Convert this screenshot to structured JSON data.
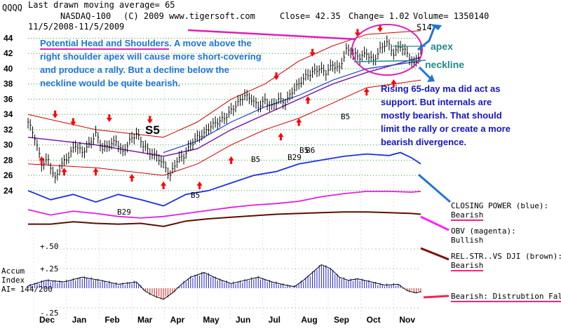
{
  "header": {
    "ticker": "QQQQ",
    "ma_label": "Last drawn moving average= 65",
    "index": "NASDAQ-100",
    "copyright": "(C) 2009 www.tigersoft.com",
    "close": "Close=  42.35",
    "change": "Change= 1.02",
    "volume": "Volume= 1350140",
    "date_range": "11/5/2008-11/5/2009"
  },
  "annotations": {
    "head_shoulders_title": "Potential Head and Shoulders",
    "head_shoulders_line1": ".  A move above the",
    "head_shoulders_line2": "right shoulder apex will cause more short-covering",
    "head_shoulders_line3": "and produce a rally.  But a decline below the",
    "head_shoulders_line4": "neckline would be quite bearish.",
    "support_line1": "Rising 65-day ma did act as",
    "support_line2": "support.  But internals are",
    "support_line3": "mostly bearish.  That should",
    "support_line4": "limit the rally or create a more",
    "support_line5": "bearish divergence.",
    "apex": "apex",
    "neckline": "neckline"
  },
  "indicators": {
    "closing_power_name": "CLOSING POWER (blue):",
    "closing_power_status": "Bearish",
    "obv_name": "OBV (magenta):",
    "obv_status": "Bullish",
    "relstr_name": "REL.STR..VS DJI (brown):",
    "relstr_status": "Bearish",
    "accum_status": "Bearish: Distrubtion Falling."
  },
  "accum": {
    "title1": "Accum",
    "title2": "Index",
    "ai": "AI= 144/200",
    "level_p50": "+.50",
    "level_p25": "+.25",
    "level_m25": "-.25"
  },
  "signals": {
    "s5": "S5",
    "s14": "S14",
    "b5": "B5",
    "b29": "B29",
    "b6": "B6"
  },
  "colors": {
    "price": "#000000",
    "band": "#cc0000",
    "ma65": "#7a1fa0",
    "ma_blue": "#1f3fd0",
    "closing_power": "#1a2fe0",
    "obv": "#e020e0",
    "relstr": "#5a0f00",
    "accum_pos": "#2020d0",
    "accum_neg": "#d02020",
    "annot_blue": "#1f74d6",
    "annot_navy": "#1515c8",
    "grid": "#2aa02a"
  },
  "chart_data": {
    "type": "line",
    "title": "NASDAQ-100 QQQQ 11/5/2008-11/5/2009",
    "x_label": "",
    "y_label": "",
    "months": [
      "Dec",
      "Jan",
      "Feb",
      "Mar",
      "Apr",
      "May",
      "Jun",
      "Jul",
      "Aug",
      "Sep",
      "Oct",
      "Nov"
    ],
    "y_ticks": [
      24,
      26,
      28,
      30,
      32,
      34,
      36,
      38,
      40,
      42,
      44
    ],
    "ylim": [
      22.6,
      44.6
    ],
    "price_points": [
      [
        0,
        33
      ],
      [
        3,
        31
      ],
      [
        6,
        27.5
      ],
      [
        9,
        28
      ],
      [
        12,
        25.5
      ],
      [
        15,
        27.5
      ],
      [
        18,
        28.5
      ],
      [
        21,
        30
      ],
      [
        24,
        29
      ],
      [
        27,
        30
      ],
      [
        30,
        31.5
      ],
      [
        33,
        29.5
      ],
      [
        36,
        30
      ],
      [
        39,
        30.5
      ],
      [
        42,
        29
      ],
      [
        45,
        30.5
      ],
      [
        48,
        31.5
      ],
      [
        51,
        30
      ],
      [
        54,
        29
      ],
      [
        57,
        28.5
      ],
      [
        60,
        27.5
      ],
      [
        63,
        26
      ],
      [
        66,
        28
      ],
      [
        69,
        28.5
      ],
      [
        72,
        30
      ],
      [
        75,
        31
      ],
      [
        78,
        31.5
      ],
      [
        81,
        32.5
      ],
      [
        84,
        33
      ],
      [
        87,
        33.5
      ],
      [
        90,
        34.5
      ],
      [
        93,
        35.5
      ],
      [
        96,
        36.5
      ],
      [
        99,
        36
      ],
      [
        102,
        35
      ],
      [
        105,
        35.8
      ],
      [
        108,
        35
      ],
      [
        111,
        36
      ],
      [
        114,
        35.5
      ],
      [
        117,
        37
      ],
      [
        120,
        38
      ],
      [
        123,
        39
      ],
      [
        126,
        39.5
      ],
      [
        129,
        40
      ],
      [
        132,
        39.5
      ],
      [
        135,
        40.5
      ],
      [
        138,
        40
      ],
      [
        141,
        42.5
      ],
      [
        144,
        42
      ],
      [
        147,
        41.5
      ],
      [
        150,
        42
      ],
      [
        153,
        41
      ],
      [
        156,
        42.5
      ],
      [
        159,
        43.5
      ],
      [
        162,
        42
      ],
      [
        165,
        43
      ],
      [
        168,
        42
      ],
      [
        171,
        40.5
      ],
      [
        174,
        42.35
      ]
    ],
    "ma65_points": [
      [
        0,
        31
      ],
      [
        30,
        30
      ],
      [
        60,
        28.5
      ],
      [
        75,
        29.5
      ],
      [
        90,
        32
      ],
      [
        105,
        34
      ],
      [
        120,
        36
      ],
      [
        135,
        38
      ],
      [
        150,
        39.5
      ],
      [
        174,
        41.5
      ]
    ],
    "ma_blue_points": [
      [
        60,
        29
      ],
      [
        75,
        30.5
      ],
      [
        90,
        33
      ],
      [
        105,
        35
      ],
      [
        120,
        36.5
      ],
      [
        135,
        38.5
      ],
      [
        150,
        40
      ],
      [
        174,
        41
      ]
    ],
    "upper_band_points": [
      [
        0,
        34
      ],
      [
        30,
        32
      ],
      [
        60,
        31
      ],
      [
        75,
        33
      ],
      [
        90,
        36
      ],
      [
        105,
        38
      ],
      [
        120,
        41
      ],
      [
        135,
        43
      ],
      [
        150,
        44.5
      ],
      [
        174,
        45
      ]
    ],
    "lower_band_points": [
      [
        0,
        27.5
      ],
      [
        30,
        27
      ],
      [
        60,
        26
      ],
      [
        75,
        27.5
      ],
      [
        90,
        30
      ],
      [
        105,
        32
      ],
      [
        120,
        33.5
      ],
      [
        135,
        35.5
      ],
      [
        150,
        37.5
      ],
      [
        174,
        38.5
      ]
    ],
    "closing_power_points": [
      [
        0,
        24
      ],
      [
        10,
        22.8
      ],
      [
        20,
        23.5
      ],
      [
        30,
        22.5
      ],
      [
        40,
        23.5
      ],
      [
        50,
        22.8
      ],
      [
        60,
        22
      ],
      [
        70,
        23.5
      ],
      [
        80,
        24
      ],
      [
        90,
        25
      ],
      [
        100,
        26
      ],
      [
        110,
        26.5
      ],
      [
        120,
        27.5
      ],
      [
        130,
        28
      ],
      [
        140,
        28.5
      ],
      [
        150,
        28.8
      ],
      [
        160,
        28.6
      ],
      [
        165,
        29
      ],
      [
        170,
        28.3
      ],
      [
        174,
        27.5
      ]
    ],
    "obv_points": [
      [
        0,
        21.5
      ],
      [
        10,
        20.8
      ],
      [
        20,
        21.3
      ],
      [
        30,
        21
      ],
      [
        40,
        20.6
      ],
      [
        50,
        20.4
      ],
      [
        60,
        20.6
      ],
      [
        70,
        21
      ],
      [
        80,
        21.4
      ],
      [
        90,
        21.8
      ],
      [
        100,
        22.1
      ],
      [
        110,
        22.3
      ],
      [
        120,
        22.6
      ],
      [
        130,
        23.2
      ],
      [
        140,
        23.6
      ],
      [
        150,
        23.9
      ],
      [
        160,
        23.9
      ],
      [
        170,
        23.8
      ],
      [
        174,
        23.9
      ]
    ],
    "relstr_points": [
      [
        0,
        19.6
      ],
      [
        10,
        19.6
      ],
      [
        20,
        19.9
      ],
      [
        30,
        19.7
      ],
      [
        40,
        19.6
      ],
      [
        50,
        19.7
      ],
      [
        60,
        19.3
      ],
      [
        70,
        20
      ],
      [
        80,
        20.3
      ],
      [
        90,
        20.5
      ],
      [
        100,
        20.7
      ],
      [
        110,
        20.9
      ],
      [
        120,
        21
      ],
      [
        130,
        21.1
      ],
      [
        140,
        21.2
      ],
      [
        150,
        21.2
      ],
      [
        160,
        21.1
      ],
      [
        170,
        21
      ],
      [
        174,
        20.9
      ]
    ],
    "accum_levels": {
      "plus50": 0.5,
      "plus25": 0.25,
      "minus25": -0.25
    },
    "accum_points": [
      [
        0,
        0.03
      ],
      [
        8,
        0.1
      ],
      [
        16,
        0.08
      ],
      [
        24,
        0.14
      ],
      [
        32,
        0.1
      ],
      [
        40,
        0.05
      ],
      [
        48,
        0.08
      ],
      [
        52,
        -0.04
      ],
      [
        56,
        -0.1
      ],
      [
        60,
        -0.14
      ],
      [
        64,
        -0.06
      ],
      [
        68,
        0.05
      ],
      [
        72,
        0.14
      ],
      [
        78,
        0.2
      ],
      [
        84,
        0.12
      ],
      [
        90,
        0.06
      ],
      [
        96,
        0.1
      ],
      [
        102,
        0.14
      ],
      [
        108,
        0.08
      ],
      [
        114,
        0.04
      ],
      [
        118,
        0.02
      ],
      [
        122,
        0.1
      ],
      [
        126,
        0.2
      ],
      [
        130,
        0.3
      ],
      [
        134,
        0.25
      ],
      [
        138,
        0.14
      ],
      [
        142,
        0.1
      ],
      [
        146,
        0.12
      ],
      [
        152,
        0.08
      ],
      [
        158,
        0.04
      ],
      [
        164,
        0.05
      ],
      [
        168,
        -0.03
      ],
      [
        172,
        -0.06
      ],
      [
        174,
        -0.04
      ]
    ]
  }
}
